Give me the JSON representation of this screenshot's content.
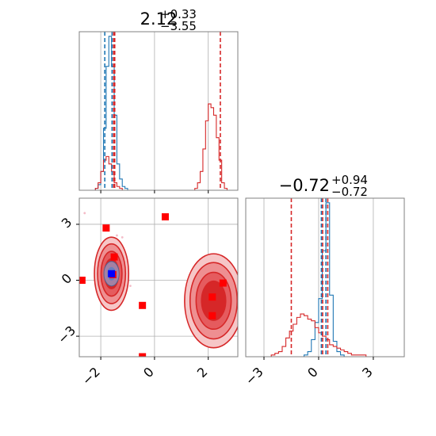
{
  "chart_data": {
    "type": "corner",
    "colors": {
      "primary": "#d62728",
      "secondary": "#1f77b4",
      "marker_red": "#ff0000",
      "marker_blue": "#0000ff",
      "grid": "#b0b0b0"
    },
    "panels": [
      {
        "id": "marginal-top",
        "type": "histogram",
        "title": {
          "value": "2.12",
          "upper": "+0.33",
          "lower": "−3.55"
        },
        "xlim": [
          -2.8,
          3.1
        ],
        "x_tick_values": [
          -2,
          0,
          2
        ],
        "show_tick_labels": false,
        "bins": [
          -2.5,
          -2.4,
          -2.3,
          -2.2,
          -2.1,
          -2.0,
          -1.9,
          -1.8,
          -1.7,
          -1.6,
          -1.5,
          -1.4,
          -1.3,
          -1.2,
          -1.1,
          -1.0,
          -0.9,
          1.5,
          1.6,
          1.7,
          1.8,
          1.9,
          2.0,
          2.1,
          2.2,
          2.3,
          2.4,
          2.5,
          2.6,
          2.7
        ],
        "series": [
          {
            "name": "",
            "color": "#1f77b4",
            "values": [
              0,
              0,
              0,
              0.01,
              0.03,
              0.1,
              0.33,
              0.66,
              0.82,
              0.66,
              0.4,
              0.14,
              0.06,
              0.02,
              0.01,
              0,
              0,
              0,
              0,
              0,
              0,
              0,
              0,
              0,
              0,
              0,
              0,
              0,
              0,
              0
            ]
          },
          {
            "name": "",
            "color": "#d62728",
            "values": [
              0,
              0,
              0,
              0.01,
              0.04,
              0.1,
              0.16,
              0.18,
              0.14,
              0.1,
              0.04,
              0.02,
              0.01,
              0,
              0,
              0,
              0,
              0.01,
              0.04,
              0.1,
              0.22,
              0.37,
              0.46,
              0.44,
              0.4,
              0.28,
              0.16,
              0.04,
              0.01,
              0
            ]
          }
        ],
        "vlines": [
          {
            "x": -1.85,
            "color": "#1f77b4"
          },
          {
            "x": -1.58,
            "color": "#1f77b4"
          },
          {
            "x": -1.52,
            "color": "#d62728"
          },
          {
            "x": -1.48,
            "color": "#d62728"
          },
          {
            "x": 2.45,
            "color": "#d62728"
          }
        ]
      },
      {
        "id": "joint",
        "type": "scatter-contour",
        "xlim": [
          -2.8,
          3.1
        ],
        "ylim": [
          -4.1,
          4.4
        ],
        "x_tick_values": [
          -2,
          0,
          2
        ],
        "x_tick_labels": [
          "−2",
          "0",
          "2"
        ],
        "y_tick_values": [
          3,
          0,
          -3
        ],
        "y_tick_labels": [
          "3",
          "0",
          "−3"
        ],
        "red_markers": [
          [
            -1.8,
            2.8
          ],
          [
            -1.5,
            1.25
          ],
          [
            0.4,
            3.4
          ],
          [
            -2.7,
            0
          ],
          [
            -0.45,
            -1.35
          ],
          [
            -0.45,
            -4.1
          ],
          [
            2.55,
            -0.15
          ],
          [
            2.15,
            -0.9
          ],
          [
            2.15,
            -1.9
          ],
          [
            -1.55,
            0.3
          ]
        ],
        "blue_markers": [
          [
            -1.6,
            0.35
          ]
        ],
        "scatter_points": [
          [
            -2.6,
            3.6
          ],
          [
            -1.4,
            2.4
          ],
          [
            -1.2,
            2.3
          ],
          [
            -1.3,
            1.7
          ],
          [
            -0.9,
            -0.3
          ],
          [
            -1.1,
            -0.6
          ],
          [
            1.85,
            -2.9
          ],
          [
            2.25,
            -3.4
          ],
          [
            2.45,
            -2.3
          ],
          [
            2.7,
            -2.8
          ],
          [
            1.9,
            0.9
          ],
          [
            2.8,
            0.6
          ],
          [
            -1.9,
            1.5
          ],
          [
            -1.7,
            -0.9
          ],
          [
            2.9,
            -1.6
          ]
        ],
        "contour_groups": [
          {
            "cx": -1.6,
            "cy": 0.35,
            "sx": 0.26,
            "sy": 0.8,
            "levels": [
              1.0,
              1.5,
              2.0,
              2.45
            ]
          },
          {
            "cx": 2.2,
            "cy": -1.1,
            "sx": 0.45,
            "sy": 1.05,
            "levels": [
              1.0,
              1.45,
              1.95,
              2.4
            ]
          }
        ],
        "blue_contour": {
          "cx": -1.6,
          "cy": 0.35,
          "sx": 0.13,
          "sy": 0.3
        }
      },
      {
        "id": "marginal-right",
        "type": "histogram",
        "title": {
          "value": "−0.72",
          "upper": "+0.94",
          "lower": "−0.72"
        },
        "xlim": [
          -4.0,
          4.7
        ],
        "x_tick_values": [
          -3,
          0,
          3
        ],
        "x_tick_labels": [
          "−3",
          "0",
          "3"
        ],
        "bins": [
          -3.2,
          -3.0,
          -2.8,
          -2.6,
          -2.4,
          -2.2,
          -2.0,
          -1.8,
          -1.6,
          -1.4,
          -1.2,
          -1.0,
          -0.8,
          -0.6,
          -0.4,
          -0.2,
          0.0,
          0.2,
          0.4,
          0.6,
          0.8,
          1.0,
          1.2,
          1.4,
          1.6,
          1.8,
          2.0,
          2.2,
          2.4,
          2.6,
          2.8
        ],
        "series": [
          {
            "name": "",
            "color": "#1f77b4",
            "values": [
              0,
              0,
              0,
              0,
              0,
              0,
              0,
              0,
              0,
              0,
              0,
              0,
              0.01,
              0.03,
              0.1,
              0.2,
              0.34,
              0.62,
              0.9,
              0.36,
              0.09,
              0.03,
              0.01,
              0,
              0,
              0,
              0,
              0,
              0,
              0,
              0
            ]
          },
          {
            "name": "",
            "color": "#d62728",
            "values": [
              0,
              0,
              0,
              0.01,
              0.02,
              0.03,
              0.06,
              0.11,
              0.15,
              0.19,
              0.23,
              0.25,
              0.24,
              0.22,
              0.21,
              0.17,
              0.14,
              0.12,
              0.1,
              0.07,
              0.06,
              0.05,
              0.04,
              0.03,
              0.02,
              0.01,
              0.01,
              0.01,
              0.01,
              0,
              0
            ]
          }
        ],
        "vlines": [
          {
            "x": -1.5,
            "color": "#d62728"
          },
          {
            "x": 0.15,
            "color": "#1f77b4"
          },
          {
            "x": 0.22,
            "color": "#d62728"
          },
          {
            "x": 0.4,
            "color": "#1f77b4"
          },
          {
            "x": 0.5,
            "color": "#d62728"
          }
        ]
      }
    ]
  }
}
